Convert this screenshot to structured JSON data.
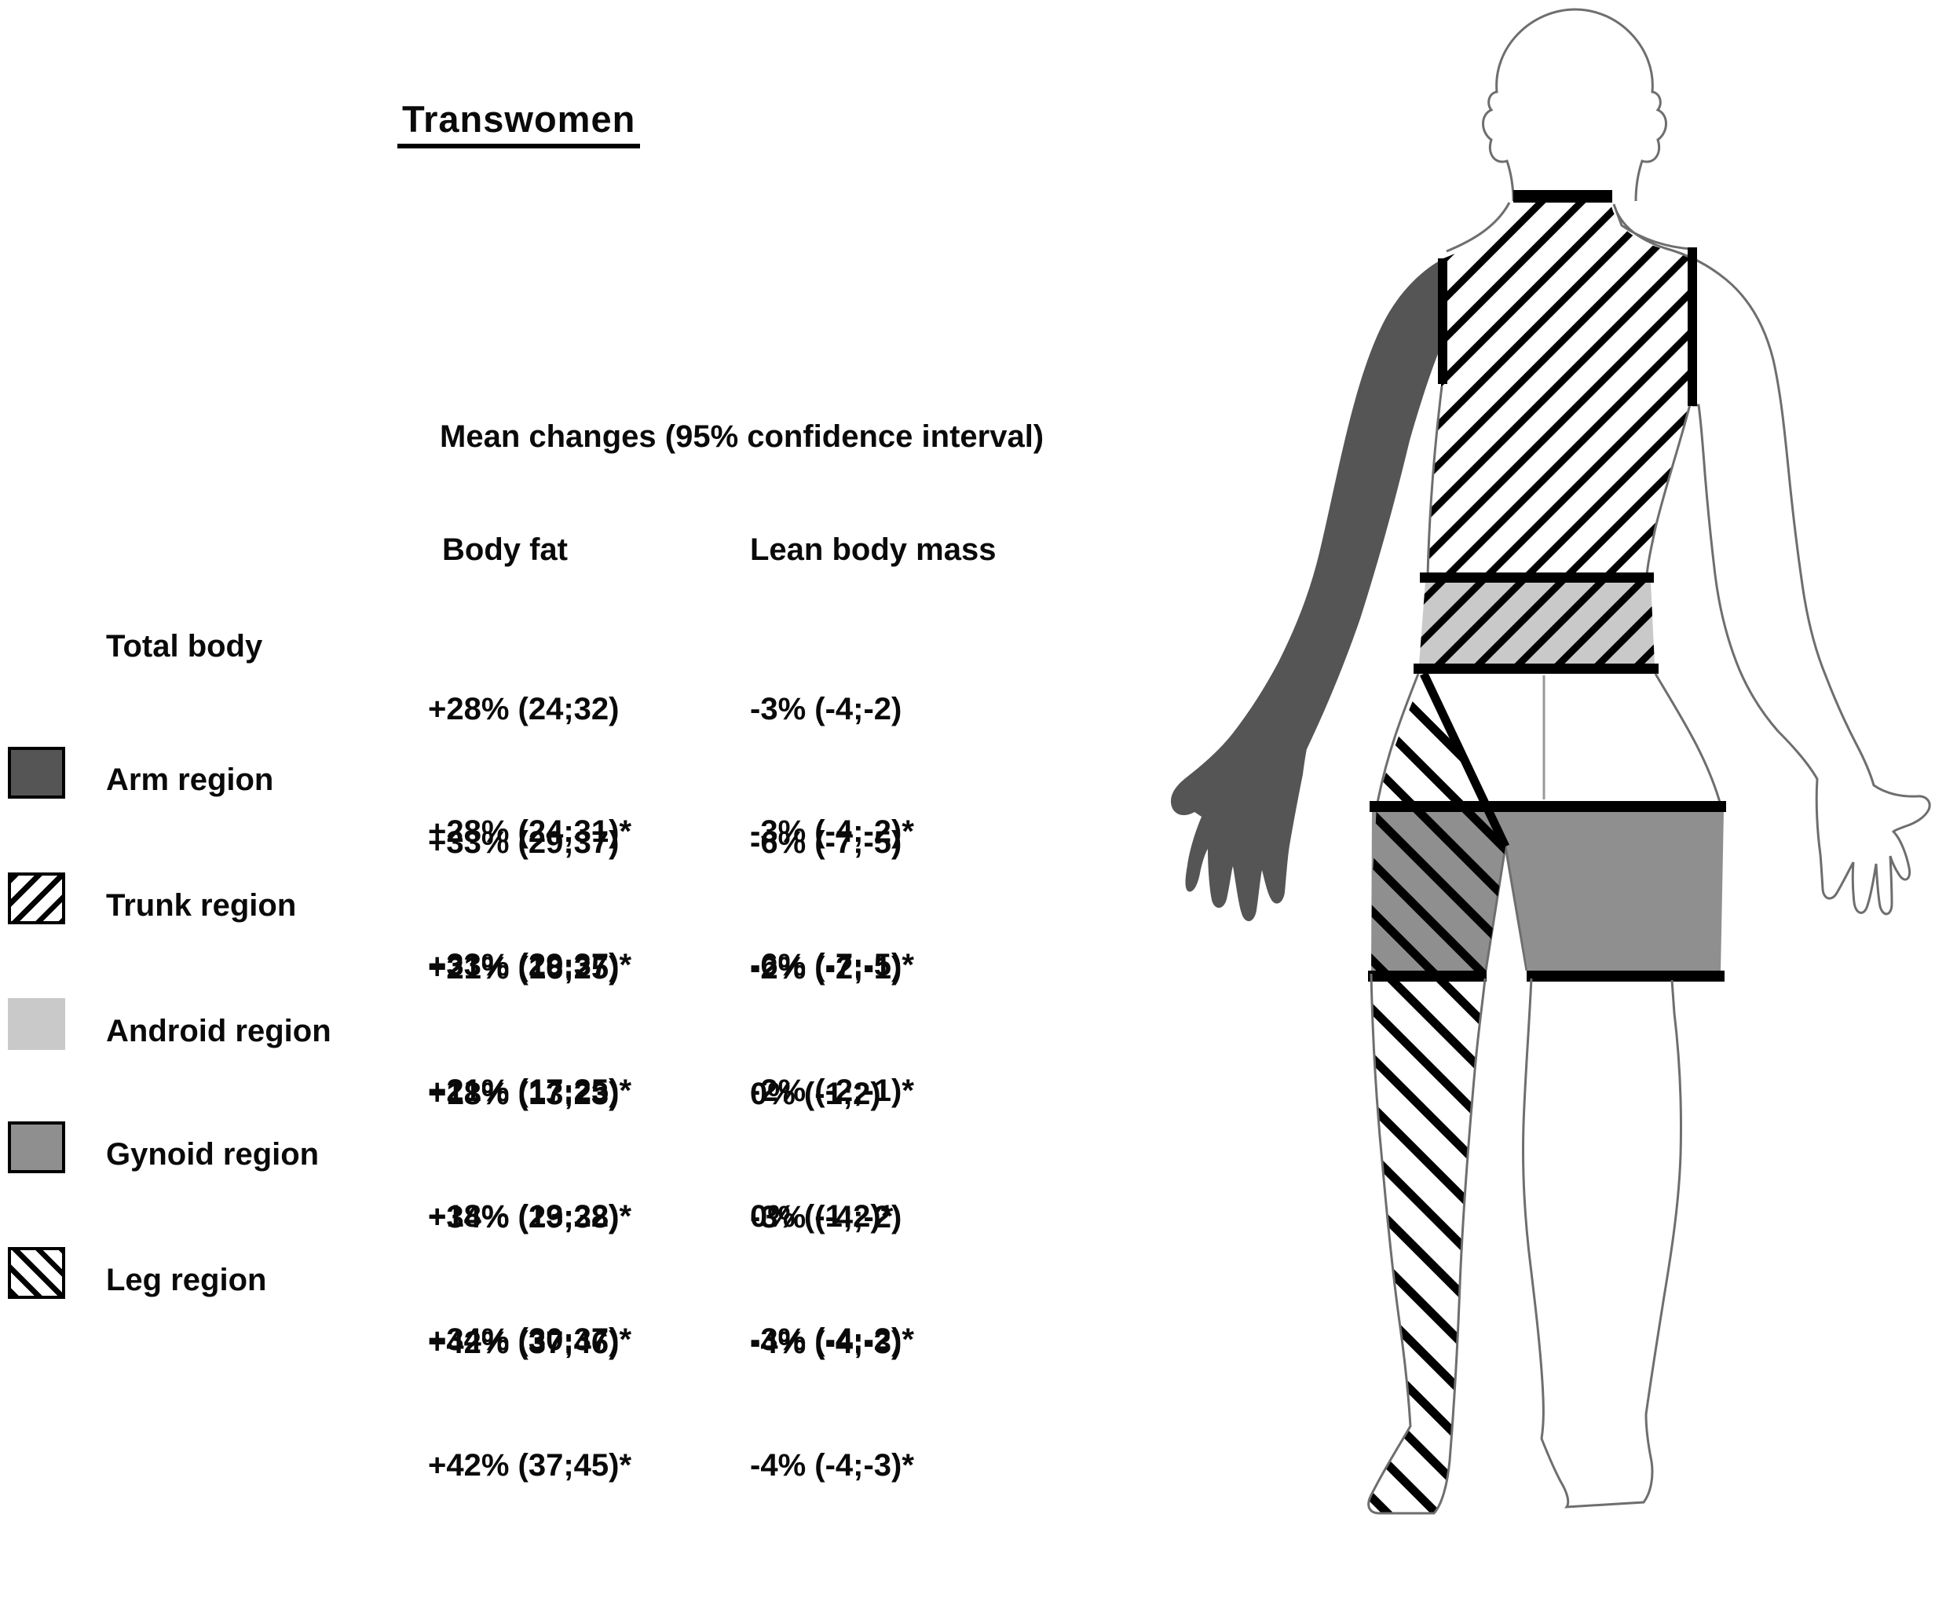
{
  "title": "Transwomen",
  "table": {
    "header": "Mean changes (95% confidence interval)",
    "col_body_fat": "Body fat",
    "col_lean_mass": "Lean body mass",
    "rows": [
      {
        "label": "Total body",
        "swatch": "none",
        "body_fat_1": "+28% (24;32)",
        "body_fat_2": "+28% (24;31)*",
        "lean_1": "-3% (-4;-2)",
        "lean_2": "-3% (-4;-2)*"
      },
      {
        "label": "Arm region",
        "swatch": "arm-solid-dark",
        "body_fat_1": "+33% (29;37)",
        "body_fat_2": "+33% (29;37)*",
        "lean_1": "-6% (-7;-5)",
        "lean_2": "-6% (-7;-5)*"
      },
      {
        "label": "Trunk region",
        "swatch": "diagonal-hatch-forward",
        "body_fat_1": "+21% (16;25)",
        "body_fat_2": "+21% (17;25)*",
        "lean_1": "-2% (-2;-1)",
        "lean_2": "-2% (-2;-1)*"
      },
      {
        "label": "Android region",
        "swatch": "solid-light-gray",
        "body_fat_1": "+18% (13;23)",
        "body_fat_2": "+18% (13;22)*",
        "lean_1": "0% (-1;2)",
        "lean_2": "0% (-1;2)*"
      },
      {
        "label": "Gynoid region",
        "swatch": "solid-medium-gray",
        "body_fat_1": "+34% (29;38)",
        "body_fat_2": "+34% (30;37)*",
        "lean_1": "-3% (-4;-2)",
        "lean_2": "-3% (-4;-2)*"
      },
      {
        "label": "Leg region",
        "swatch": "diagonal-hatch-backward",
        "body_fat_1": "+42% (37;46)",
        "body_fat_2": "+42% (37;45)*",
        "lean_1": "-4% (-4;-3)",
        "lean_2": "-4% (-4;-3)*"
      }
    ]
  },
  "colors": {
    "arm_dark": "#555555",
    "android_light": "#c9c9c9",
    "gynoid_medium": "#8f8f8f",
    "hatch_black": "#000000",
    "outline_gray": "#6e6e6e"
  }
}
